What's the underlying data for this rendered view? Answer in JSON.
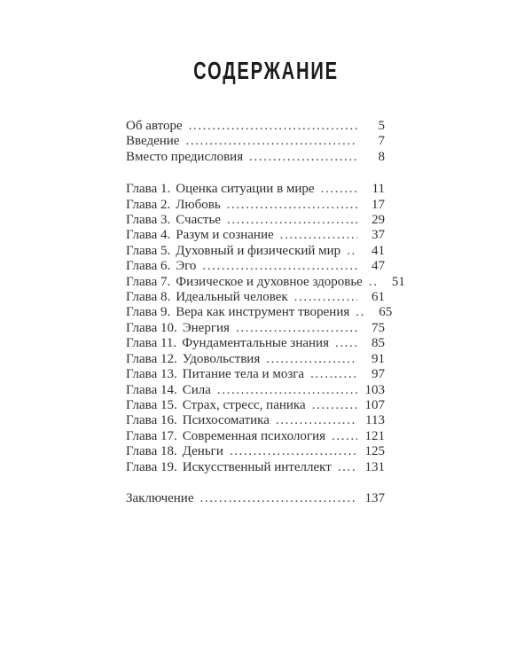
{
  "page_title": "СОДЕРЖАНИЕ",
  "toc": {
    "front_matter": [
      {
        "label": "Об авторе",
        "page": "5"
      },
      {
        "label": "Введение",
        "page": "7"
      },
      {
        "label": "Вместо предисловия",
        "page": "8"
      }
    ],
    "chapters": [
      {
        "prefix": "Глава 1.",
        "title": "Оценка ситуации в мире",
        "page": "11"
      },
      {
        "prefix": "Глава 2.",
        "title": "Любовь",
        "page": "17"
      },
      {
        "prefix": "Глава 3.",
        "title": "Счастье",
        "page": "29"
      },
      {
        "prefix": "Глава 4.",
        "title": "Разум и сознание",
        "page": "37"
      },
      {
        "prefix": "Глава 5.",
        "title": "Духовный и физический мир",
        "page": "41"
      },
      {
        "prefix": "Глава 6.",
        "title": "Эго",
        "page": "47"
      },
      {
        "prefix": "Глава 7.",
        "title": "Физическое и духовное здоровье",
        "page": "51"
      },
      {
        "prefix": "Глава 8.",
        "title": "Идеальный человек",
        "page": "61"
      },
      {
        "prefix": "Глава 9.",
        "title": "Вера как инструмент творения",
        "page": "65"
      },
      {
        "prefix": "Глава 10.",
        "title": "Энергия",
        "page": "75"
      },
      {
        "prefix": "Глава 11.",
        "title": "Фундаментальные знания",
        "page": "85"
      },
      {
        "prefix": "Глава 12.",
        "title": "Удовольствия",
        "page": "91"
      },
      {
        "prefix": "Глава 13.",
        "title": "Питание тела и мозга",
        "page": "97"
      },
      {
        "prefix": "Глава 14.",
        "title": "Сила",
        "page": "103"
      },
      {
        "prefix": "Глава 15.",
        "title": "Страх, стресс, паника",
        "page": "107"
      },
      {
        "prefix": "Глава 16.",
        "title": "Психосоматика",
        "page": "113"
      },
      {
        "prefix": "Глава 17.",
        "title": "Современная психология",
        "page": "121"
      },
      {
        "prefix": "Глава 18.",
        "title": "Деньги",
        "page": "125"
      },
      {
        "prefix": "Глава 19.",
        "title": "Искусственный интеллект",
        "page": "131"
      }
    ],
    "closing": [
      {
        "label": "Заключение",
        "page": "137"
      }
    ]
  },
  "colors": {
    "background": "#ffffff",
    "text": "#2e2e2e",
    "title": "#1c1c1c"
  }
}
